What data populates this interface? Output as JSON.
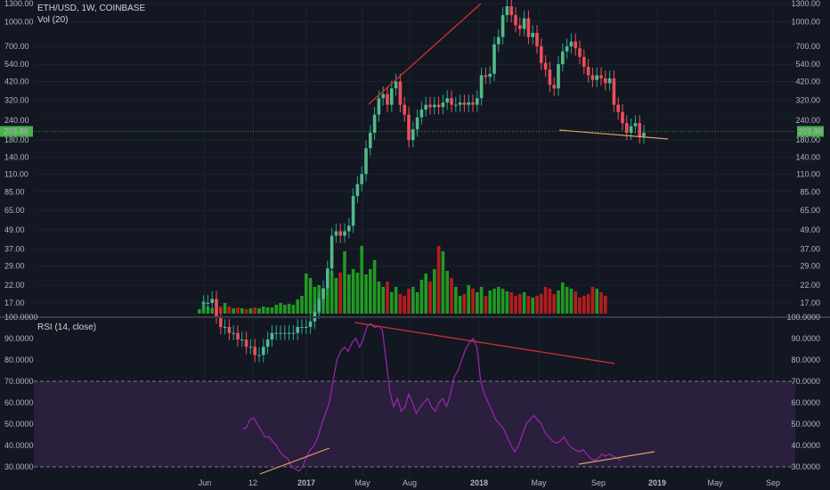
{
  "header": {
    "symbol": "ETH/USD, 1W, COINBASE",
    "volume": "Vol (20)"
  },
  "rsi_header": "RSI (14, close)",
  "last_price_label": "203.86",
  "colors": {
    "bg": "#131722",
    "grid": "#1e2230",
    "up": "#26a69a",
    "down": "#ef5350",
    "vol_up": "#229922",
    "vol_down": "#b71c1c",
    "rsi_line": "#9c27b0",
    "rsi_band": "#2a1f3d",
    "trend_red": "#d32f2f",
    "trend_orange": "#e0a060",
    "price_line": "#4caf50"
  },
  "chart_data": [
    {
      "type": "candlestick",
      "title": "ETH/USD, 1W, COINBASE",
      "y_scale": "log",
      "price_ticks": [
        "1300.00",
        "1000.00",
        "700.00",
        "540.00",
        "420.00",
        "320.00",
        "240.00",
        "180.00",
        "140.00",
        "110.00",
        "85.00",
        "65.00",
        "49.00",
        "37.00",
        "29.00",
        "22.00",
        "17.00"
      ],
      "x_ticks": [
        "Jun",
        "12",
        "2017",
        "May",
        "Aug",
        "2018",
        "May",
        "Sep",
        "2019",
        "May",
        "Sep"
      ],
      "last_price": 203.86,
      "ohlc_weekly_close_approx": [
        17,
        17,
        17,
        18,
        14,
        12,
        12,
        11,
        11,
        10,
        10,
        9,
        9,
        8,
        8,
        9,
        10,
        11,
        11,
        11,
        11,
        11,
        11,
        12,
        12,
        12,
        13,
        15,
        18,
        21,
        28,
        45,
        48,
        45,
        48,
        52,
        80,
        95,
        110,
        160,
        200,
        260,
        330,
        350,
        300,
        380,
        420,
        300,
        260,
        180,
        210,
        250,
        280,
        300,
        290,
        300,
        290,
        310,
        330,
        300,
        300,
        310,
        300,
        310,
        300,
        330,
        460,
        450,
        470,
        720,
        800,
        1100,
        1250,
        1100,
        950,
        900,
        1050,
        800,
        850,
        700,
        550,
        500,
        400,
        380,
        540,
        650,
        700,
        750,
        680,
        600,
        520,
        460,
        430,
        460,
        440,
        410,
        440,
        300,
        270,
        230,
        200,
        220,
        230,
        190,
        200
      ],
      "annotations": [
        {
          "type": "trendline",
          "color": "red",
          "desc": "rising upper trend of price highs"
        },
        {
          "type": "trendline",
          "color": "orange",
          "desc": "support line near 200"
        }
      ]
    },
    {
      "type": "bar",
      "title": "Vol (20)",
      "relative_heights": [
        0.05,
        0.14,
        0.08,
        0.06,
        0.1,
        0.08,
        0.12,
        0.08,
        0.06,
        0.07,
        0.06,
        0.05,
        0.06,
        0.07,
        0.06,
        0.08,
        0.07,
        0.07,
        0.1,
        0.12,
        0.1,
        0.11,
        0.1,
        0.16,
        0.2,
        0.45,
        0.4,
        0.3,
        0.32,
        0.28,
        0.4,
        0.48,
        0.4,
        0.46,
        0.7,
        0.44,
        0.5,
        0.46,
        0.76,
        0.44,
        0.5,
        0.6,
        0.36,
        0.3,
        0.36,
        0.24,
        0.3,
        0.22,
        0.2,
        0.28,
        0.3,
        0.24,
        0.38,
        0.45,
        0.36,
        0.5,
        0.76,
        0.7,
        0.48,
        0.4,
        0.3,
        0.2,
        0.22,
        0.32,
        0.28,
        0.24,
        0.3,
        0.2,
        0.26,
        0.28,
        0.3,
        0.28,
        0.25,
        0.24,
        0.2,
        0.22,
        0.24,
        0.2,
        0.18,
        0.2,
        0.22,
        0.3,
        0.28,
        0.22,
        0.26,
        0.35,
        0.3,
        0.28,
        0.25,
        0.18,
        0.2,
        0.22,
        0.3,
        0.28,
        0.24,
        0.2
      ]
    },
    {
      "type": "line",
      "title": "RSI (14, close)",
      "y_ticks": [
        "100.0000",
        "90.0000",
        "80.0000",
        "70.0000",
        "60.0000",
        "50.0000",
        "40.0000",
        "30.0000"
      ],
      "ylim": [
        30,
        100
      ],
      "overbought": 70,
      "oversold": 30,
      "values": [
        48,
        48,
        52,
        53,
        50,
        47,
        44,
        44,
        42,
        40,
        37,
        35,
        34,
        30,
        29,
        28,
        30,
        35,
        38,
        40,
        44,
        50,
        55,
        60,
        70,
        80,
        84,
        86,
        84,
        88,
        90,
        86,
        90,
        96,
        97,
        95,
        96,
        94,
        80,
        65,
        58,
        62,
        56,
        58,
        64,
        60,
        55,
        58,
        60,
        62,
        58,
        56,
        60,
        62,
        58,
        64,
        72,
        75,
        80,
        85,
        88,
        90,
        86,
        70,
        64,
        60,
        56,
        52,
        50,
        48,
        44,
        40,
        37,
        40,
        45,
        50,
        52,
        54,
        52,
        50,
        46,
        44,
        42,
        41,
        42,
        44,
        41,
        39,
        38,
        37,
        38,
        36,
        34,
        33,
        34,
        36,
        35,
        36,
        35,
        34,
        33
      ],
      "annotations": [
        {
          "type": "trendline",
          "color": "red",
          "desc": "bearish divergence on RSI highs"
        },
        {
          "type": "trendline",
          "color": "orange",
          "desc": "rising RSI lows"
        }
      ]
    }
  ]
}
